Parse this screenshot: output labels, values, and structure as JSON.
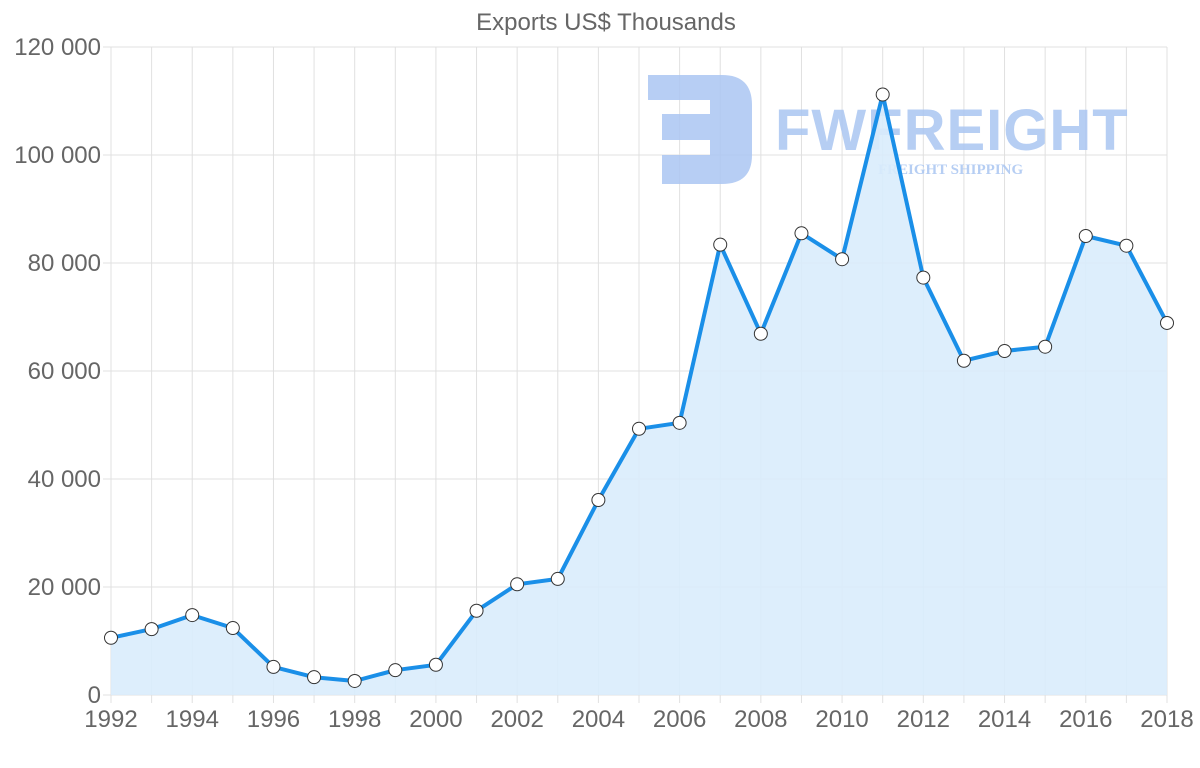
{
  "chart_data": {
    "type": "area",
    "title": "Exports US$ Thousands",
    "xlabel": "",
    "ylabel": "",
    "x": [
      1992,
      1993,
      1994,
      1995,
      1996,
      1997,
      1998,
      1999,
      2000,
      2001,
      2002,
      2003,
      2004,
      2005,
      2006,
      2007,
      2008,
      2009,
      2010,
      2011,
      2012,
      2013,
      2014,
      2015,
      2016,
      2017,
      2018
    ],
    "series": [
      {
        "name": "Exports US$ Thousands",
        "values": [
          10600,
          12200,
          14800,
          12400,
          5200,
          3300,
          2600,
          4600,
          5600,
          15600,
          20500,
          21500,
          36100,
          49300,
          50400,
          83400,
          66900,
          85500,
          80700,
          111200,
          77300,
          61900,
          63700,
          64500,
          85000,
          83200,
          68900
        ]
      }
    ],
    "ylim": [
      0,
      120000
    ],
    "yticks": [
      0,
      20000,
      40000,
      60000,
      80000,
      100000,
      120000
    ],
    "ytick_labels": [
      "0",
      "20 000",
      "40 000",
      "60 000",
      "80 000",
      "100 000",
      "120 000"
    ],
    "xticks": [
      1992,
      1994,
      1996,
      1998,
      2000,
      2002,
      2004,
      2006,
      2008,
      2010,
      2012,
      2014,
      2016,
      2018
    ],
    "xtick_labels": [
      "1992",
      "1994",
      "1996",
      "1998",
      "2000",
      "2002",
      "2004",
      "2006",
      "2008",
      "2010",
      "2012",
      "2014",
      "2016",
      "2018"
    ],
    "grid": true,
    "legend": "none",
    "colors": {
      "line": "#1a8fe8",
      "fill": "#d9ecfc",
      "marker_fill": "#ffffff",
      "marker_stroke": "#333333",
      "grid": "#e0e0e0",
      "text": "#666666"
    }
  },
  "watermark": {
    "brand": "FWFREIGHT",
    "tagline": "FREIGHT SHIPPING",
    "color": "#aac6f2"
  }
}
